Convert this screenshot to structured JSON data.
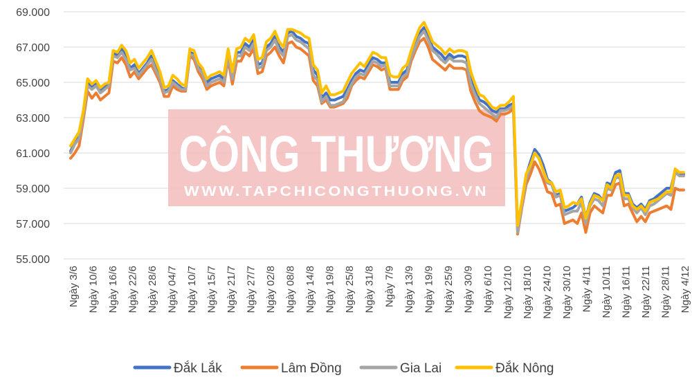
{
  "watermark": {
    "title": "CÔNG THƯƠNG",
    "url": "WWW.TAPCHICONGTHUONG.VN",
    "color": "#f3bcbc"
  },
  "chart_data": {
    "type": "line",
    "title": "",
    "xlabel": "",
    "ylabel": "",
    "ylim": [
      55000,
      69000
    ],
    "yticks": [
      "55.000",
      "57.000",
      "59.000",
      "61.000",
      "63.000",
      "65.000",
      "67.000",
      "69.000"
    ],
    "grid": "horizontal",
    "legend_position": "bottom",
    "x_tick_labels": [
      "Ngày 3/6",
      "Ngày 10/6",
      "Ngày 16/6",
      "Ngày 22/6",
      "Ngày 28/6",
      "Ngày 04/7",
      "Ngày 10/7",
      "Ngày 15/7",
      "Ngày 21/7",
      "Ngày 27/7",
      "Ngày 02/8",
      "Ngày 08/8",
      "Ngày 14/8",
      "Ngày 19/8",
      "Ngày 25/8",
      "Ngày 31/8",
      "Ngày 7/9",
      "Ngày 13/9",
      "Ngày 19/9",
      "Ngày 25/9",
      "Ngày 30/9",
      "Ngày 6/10",
      "Ngày 12/10",
      "Ngày 18/10",
      "Ngày 24/10",
      "Ngày 30/10",
      "Ngày 4/11",
      "Ngày 10/11",
      "Ngày 16/11",
      "Ngày 22/11",
      "Ngày 28/11",
      "Ngày 4/12"
    ],
    "series": [
      {
        "name": "Đắk Lắk",
        "color": "#4472c4",
        "values": [
          61100,
          61600,
          62000,
          63200,
          65000,
          64700,
          64900,
          64500,
          64700,
          64900,
          66700,
          66500,
          66900,
          66500,
          65800,
          66000,
          65500,
          65800,
          66100,
          66500,
          65900,
          65400,
          64500,
          64600,
          65100,
          64900,
          64700,
          64600,
          66700,
          66600,
          65900,
          65600,
          65000,
          65200,
          65300,
          65400,
          65200,
          66700,
          65400,
          66700,
          66700,
          67200,
          67000,
          67400,
          66000,
          66100,
          67000,
          67200,
          67600,
          67000,
          66700,
          67800,
          67900,
          67600,
          67500,
          67300,
          67200,
          65700,
          65400,
          64100,
          64400,
          64000,
          64000,
          64100,
          64200,
          64600,
          65100,
          65500,
          65700,
          65600,
          66000,
          66400,
          66300,
          66100,
          66100,
          65000,
          65000,
          65000,
          65500,
          65700,
          66500,
          67200,
          67800,
          68100,
          67600,
          67000,
          66800,
          66600,
          66300,
          66600,
          66400,
          66500,
          66500,
          66400,
          65300,
          64600,
          64000,
          63900,
          63700,
          63400,
          63300,
          63500,
          63500,
          63700,
          63800,
          56700,
          58200,
          59700,
          60500,
          61200,
          60900,
          60300,
          59500,
          59300,
          58600,
          58700,
          57700,
          57800,
          57900,
          58100,
          58500,
          57300,
          58200,
          58700,
          58600,
          58300,
          59300,
          59200,
          59900,
          60000,
          58700,
          58700,
          58100,
          57900,
          58100,
          57800,
          58300,
          58400,
          58600,
          58800,
          59000,
          59000,
          60000,
          59800,
          59800
        ]
      },
      {
        "name": "Lâm Đồng",
        "color": "#ed7d31",
        "values": [
          60700,
          61000,
          61400,
          62900,
          64500,
          64100,
          64400,
          64000,
          64200,
          64400,
          66200,
          66100,
          66400,
          66000,
          65300,
          65600,
          65200,
          65500,
          65800,
          66000,
          65500,
          65000,
          64200,
          64200,
          64800,
          64600,
          64500,
          64500,
          66500,
          66300,
          65600,
          65200,
          64600,
          64800,
          64900,
          65000,
          64800,
          66300,
          64900,
          66200,
          66200,
          66700,
          66500,
          66900,
          65500,
          65600,
          66500,
          66700,
          67000,
          66500,
          66100,
          67200,
          67300,
          67000,
          66900,
          66700,
          66500,
          65100,
          64800,
          63800,
          64000,
          63600,
          63600,
          63700,
          63800,
          64100,
          64800,
          65100,
          65300,
          65200,
          65600,
          66000,
          65900,
          65700,
          65800,
          64600,
          64600,
          64600,
          65100,
          65300,
          66200,
          66800,
          67300,
          67500,
          67000,
          66300,
          66100,
          65900,
          65700,
          66000,
          65800,
          65800,
          65800,
          65700,
          64500,
          63900,
          63400,
          63200,
          63100,
          63000,
          62800,
          63200,
          63200,
          63300,
          63500,
          56400,
          57900,
          59200,
          59800,
          60500,
          60100,
          59500,
          58800,
          58700,
          58000,
          58100,
          57000,
          57100,
          57200,
          57000,
          57600,
          56500,
          57600,
          58000,
          57800,
          57600,
          58600,
          58600,
          59200,
          59300,
          58000,
          58100,
          57600,
          57100,
          57400,
          57100,
          57600,
          57700,
          57800,
          57900,
          58000,
          57800,
          59000,
          58900,
          58900
        ]
      },
      {
        "name": "Gia Lai",
        "color": "#a5a5a5",
        "values": [
          61000,
          61500,
          61800,
          63100,
          64800,
          64600,
          64800,
          64400,
          64600,
          64800,
          66500,
          66400,
          66700,
          66300,
          65700,
          65800,
          65400,
          65700,
          66000,
          66300,
          65700,
          65200,
          64400,
          64500,
          65000,
          64800,
          64600,
          64600,
          66600,
          66500,
          65800,
          65500,
          64800,
          65000,
          65100,
          65200,
          65000,
          66500,
          65200,
          66500,
          66500,
          67000,
          66800,
          67200,
          65800,
          65900,
          66800,
          67000,
          67400,
          66800,
          66500,
          67600,
          67700,
          67400,
          67300,
          67100,
          66900,
          65400,
          65100,
          63900,
          64200,
          63700,
          63700,
          63800,
          63900,
          64400,
          64900,
          65300,
          65500,
          65400,
          65800,
          66200,
          66100,
          65900,
          66000,
          64800,
          64800,
          64800,
          65300,
          65500,
          66400,
          67000,
          67600,
          67900,
          67400,
          66800,
          66600,
          66300,
          66100,
          66400,
          66200,
          66200,
          66200,
          66100,
          64900,
          64300,
          63800,
          63600,
          63400,
          63200,
          63000,
          63400,
          63400,
          63500,
          63700,
          56500,
          58000,
          59500,
          60200,
          61000,
          60700,
          60000,
          59300,
          59200,
          58500,
          58600,
          57500,
          57600,
          57700,
          57700,
          58200,
          57000,
          58000,
          58400,
          58300,
          58000,
          59000,
          58900,
          59600,
          59600,
          58400,
          58400,
          57900,
          57600,
          57900,
          57500,
          58000,
          58100,
          58300,
          58500,
          58700,
          58600,
          59900,
          59700,
          59700
        ]
      },
      {
        "name": "Đắk Nông",
        "color": "#ffc000",
        "values": [
          61400,
          61800,
          62200,
          63400,
          65200,
          64900,
          65100,
          64700,
          64900,
          65000,
          66800,
          66700,
          67100,
          66800,
          66100,
          66300,
          65800,
          66100,
          66400,
          66800,
          66200,
          65600,
          64700,
          64800,
          65400,
          65200,
          64900,
          64800,
          66900,
          66800,
          66100,
          65800,
          65200,
          65400,
          65500,
          65600,
          65400,
          66900,
          65600,
          66900,
          67000,
          67500,
          67300,
          67700,
          66300,
          66400,
          67300,
          67500,
          67900,
          67300,
          67000,
          68000,
          68000,
          67900,
          67800,
          67600,
          67500,
          66000,
          65700,
          64400,
          64800,
          64300,
          64300,
          64400,
          64500,
          65000,
          65500,
          65800,
          66100,
          65900,
          66300,
          66700,
          66600,
          66400,
          66400,
          65400,
          65300,
          65300,
          65800,
          66000,
          66800,
          67500,
          68100,
          68400,
          67900,
          67300,
          67100,
          66900,
          66600,
          66900,
          66700,
          66800,
          66800,
          66700,
          65600,
          64900,
          64300,
          64200,
          63900,
          63600,
          63500,
          63700,
          63700,
          63900,
          64200,
          56900,
          58300,
          59800,
          60300,
          61000,
          60700,
          60000,
          59400,
          59300,
          58800,
          58900,
          57900,
          58000,
          58200,
          58100,
          58400,
          57300,
          58100,
          58600,
          58500,
          58300,
          59200,
          59000,
          59700,
          59800,
          58600,
          58600,
          58000,
          57800,
          58000,
          57700,
          58200,
          58300,
          58400,
          58600,
          58800,
          58800,
          60100,
          59900,
          59900
        ]
      }
    ]
  }
}
